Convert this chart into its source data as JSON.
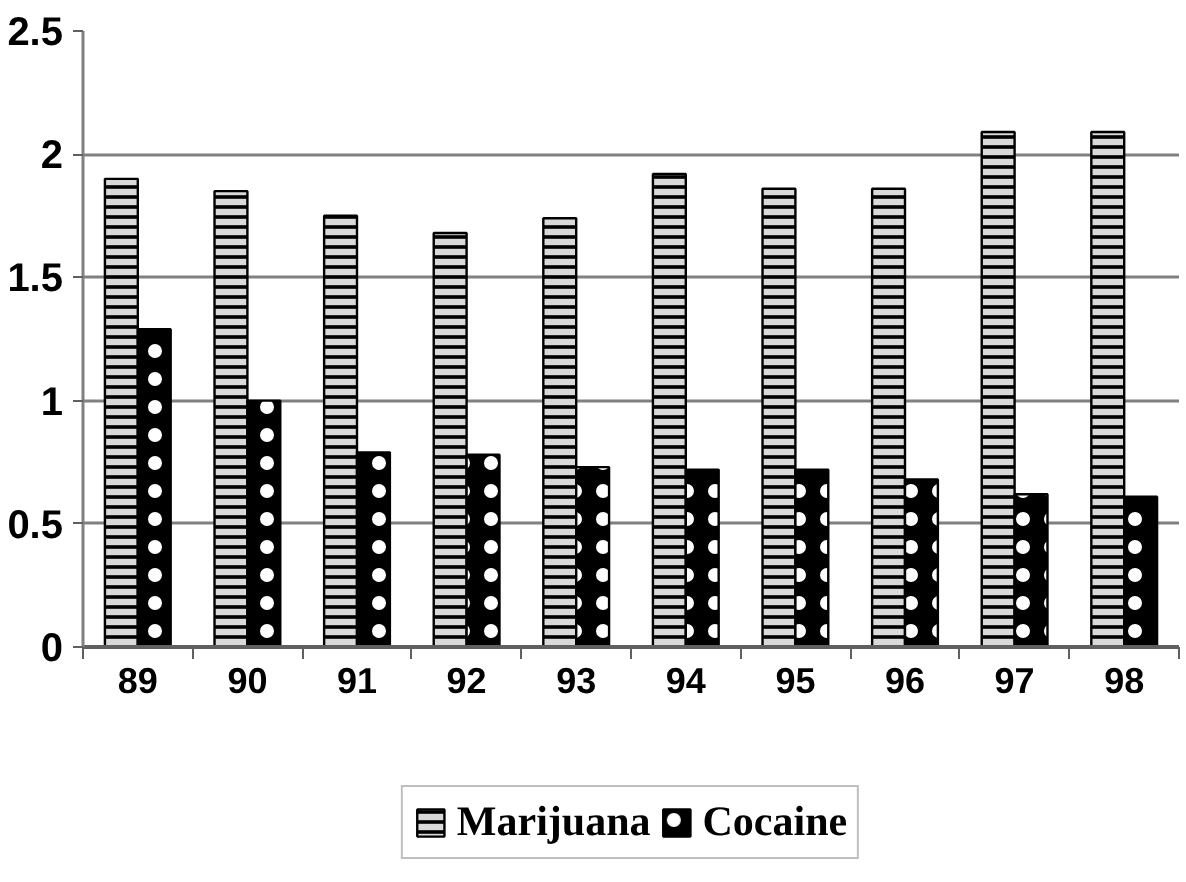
{
  "chart_data": {
    "type": "bar",
    "categories": [
      "89",
      "90",
      "91",
      "92",
      "93",
      "94",
      "95",
      "96",
      "97",
      "98"
    ],
    "series": [
      {
        "name": "Marijuana",
        "color": "#d9d9d9",
        "values": [
          1.9,
          1.85,
          1.75,
          1.68,
          1.74,
          1.92,
          1.86,
          1.86,
          2.09,
          2.09
        ]
      },
      {
        "name": "Cocaine",
        "color": "#000000",
        "values": [
          1.29,
          1.0,
          0.79,
          0.78,
          0.73,
          0.72,
          0.72,
          0.68,
          0.62,
          0.61
        ]
      }
    ],
    "ylim": [
      0,
      2.5
    ],
    "yticks": [
      0,
      0.5,
      1,
      1.5,
      2,
      2.5
    ],
    "grid": "y",
    "legend": "bottom"
  }
}
